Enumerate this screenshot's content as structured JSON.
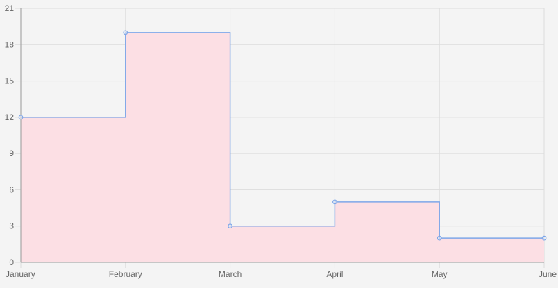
{
  "chart_data": {
    "type": "line",
    "step": "after",
    "categories": [
      "January",
      "February",
      "March",
      "April",
      "May",
      "June"
    ],
    "series": [
      {
        "values": [
          12,
          19,
          3,
          5,
          2,
          2
        ],
        "line_color": "#7ea6e8",
        "fill_color": "#fcdfe4",
        "point_color": "#7ea6e8"
      }
    ],
    "title": "",
    "xlabel": "",
    "ylabel": "",
    "ylim": [
      0,
      21
    ],
    "yticks": [
      0,
      3,
      6,
      9,
      12,
      15,
      18,
      21
    ],
    "grid": true,
    "legend": "none"
  },
  "colors": {
    "background": "#f4f4f4",
    "grid": "#dcdcdc",
    "axis": "#999999",
    "tick_text": "#666666"
  }
}
